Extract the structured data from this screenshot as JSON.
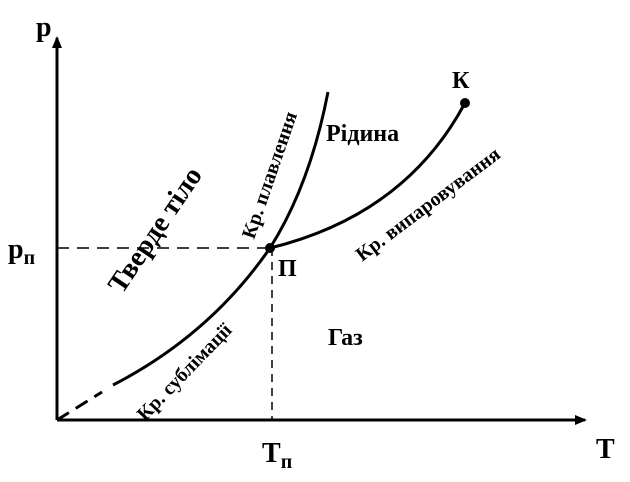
{
  "axes": {
    "y_label": "p",
    "x_label": "T",
    "y_tick": {
      "main": "p",
      "sub": "п"
    },
    "x_tick": {
      "main": "T",
      "sub": "п"
    }
  },
  "points": {
    "triple": "П",
    "critical": "К"
  },
  "regions": {
    "solid": "Тверде тіло",
    "liquid": "Рідина",
    "gas": "Газ"
  },
  "curves": {
    "melting": "Кр. плавлення",
    "vaporization": "Кр. випаровування",
    "sublimation": "Кр. сублімації"
  }
}
